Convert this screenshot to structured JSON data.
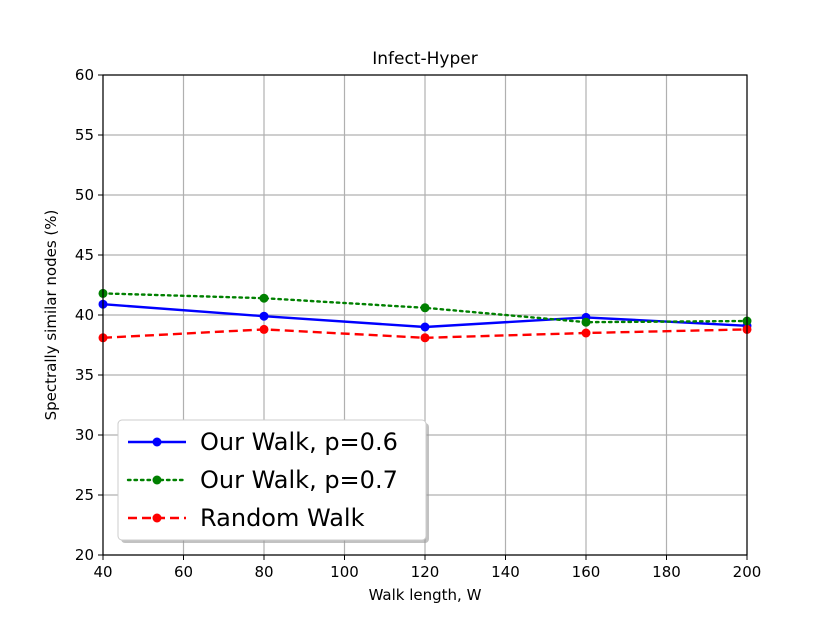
{
  "chart_data": {
    "type": "line",
    "title": "Infect-Hyper",
    "xlabel": "Walk length, W",
    "ylabel": "Spectrally similar nodes (%)",
    "x": [
      40,
      80,
      120,
      160,
      200
    ],
    "xlim": [
      40,
      200
    ],
    "ylim": [
      20,
      60
    ],
    "xticks": [
      40,
      60,
      80,
      100,
      120,
      140,
      160,
      180,
      200
    ],
    "yticks": [
      20,
      25,
      30,
      35,
      40,
      45,
      50,
      55,
      60
    ],
    "grid": true,
    "legend_position": "lower-left",
    "series": [
      {
        "name": "Our Walk, p=0.6",
        "values": [
          40.9,
          39.9,
          39.0,
          39.8,
          39.1
        ],
        "color": "#0000ff",
        "style": "solid"
      },
      {
        "name": "Our Walk, p=0.7",
        "values": [
          41.8,
          41.4,
          40.6,
          39.4,
          39.5
        ],
        "color": "#008000",
        "style": "dotted"
      },
      {
        "name": "Random Walk",
        "values": [
          38.1,
          38.8,
          38.1,
          38.5,
          38.8
        ],
        "color": "#ff0000",
        "style": "dashed"
      }
    ]
  }
}
